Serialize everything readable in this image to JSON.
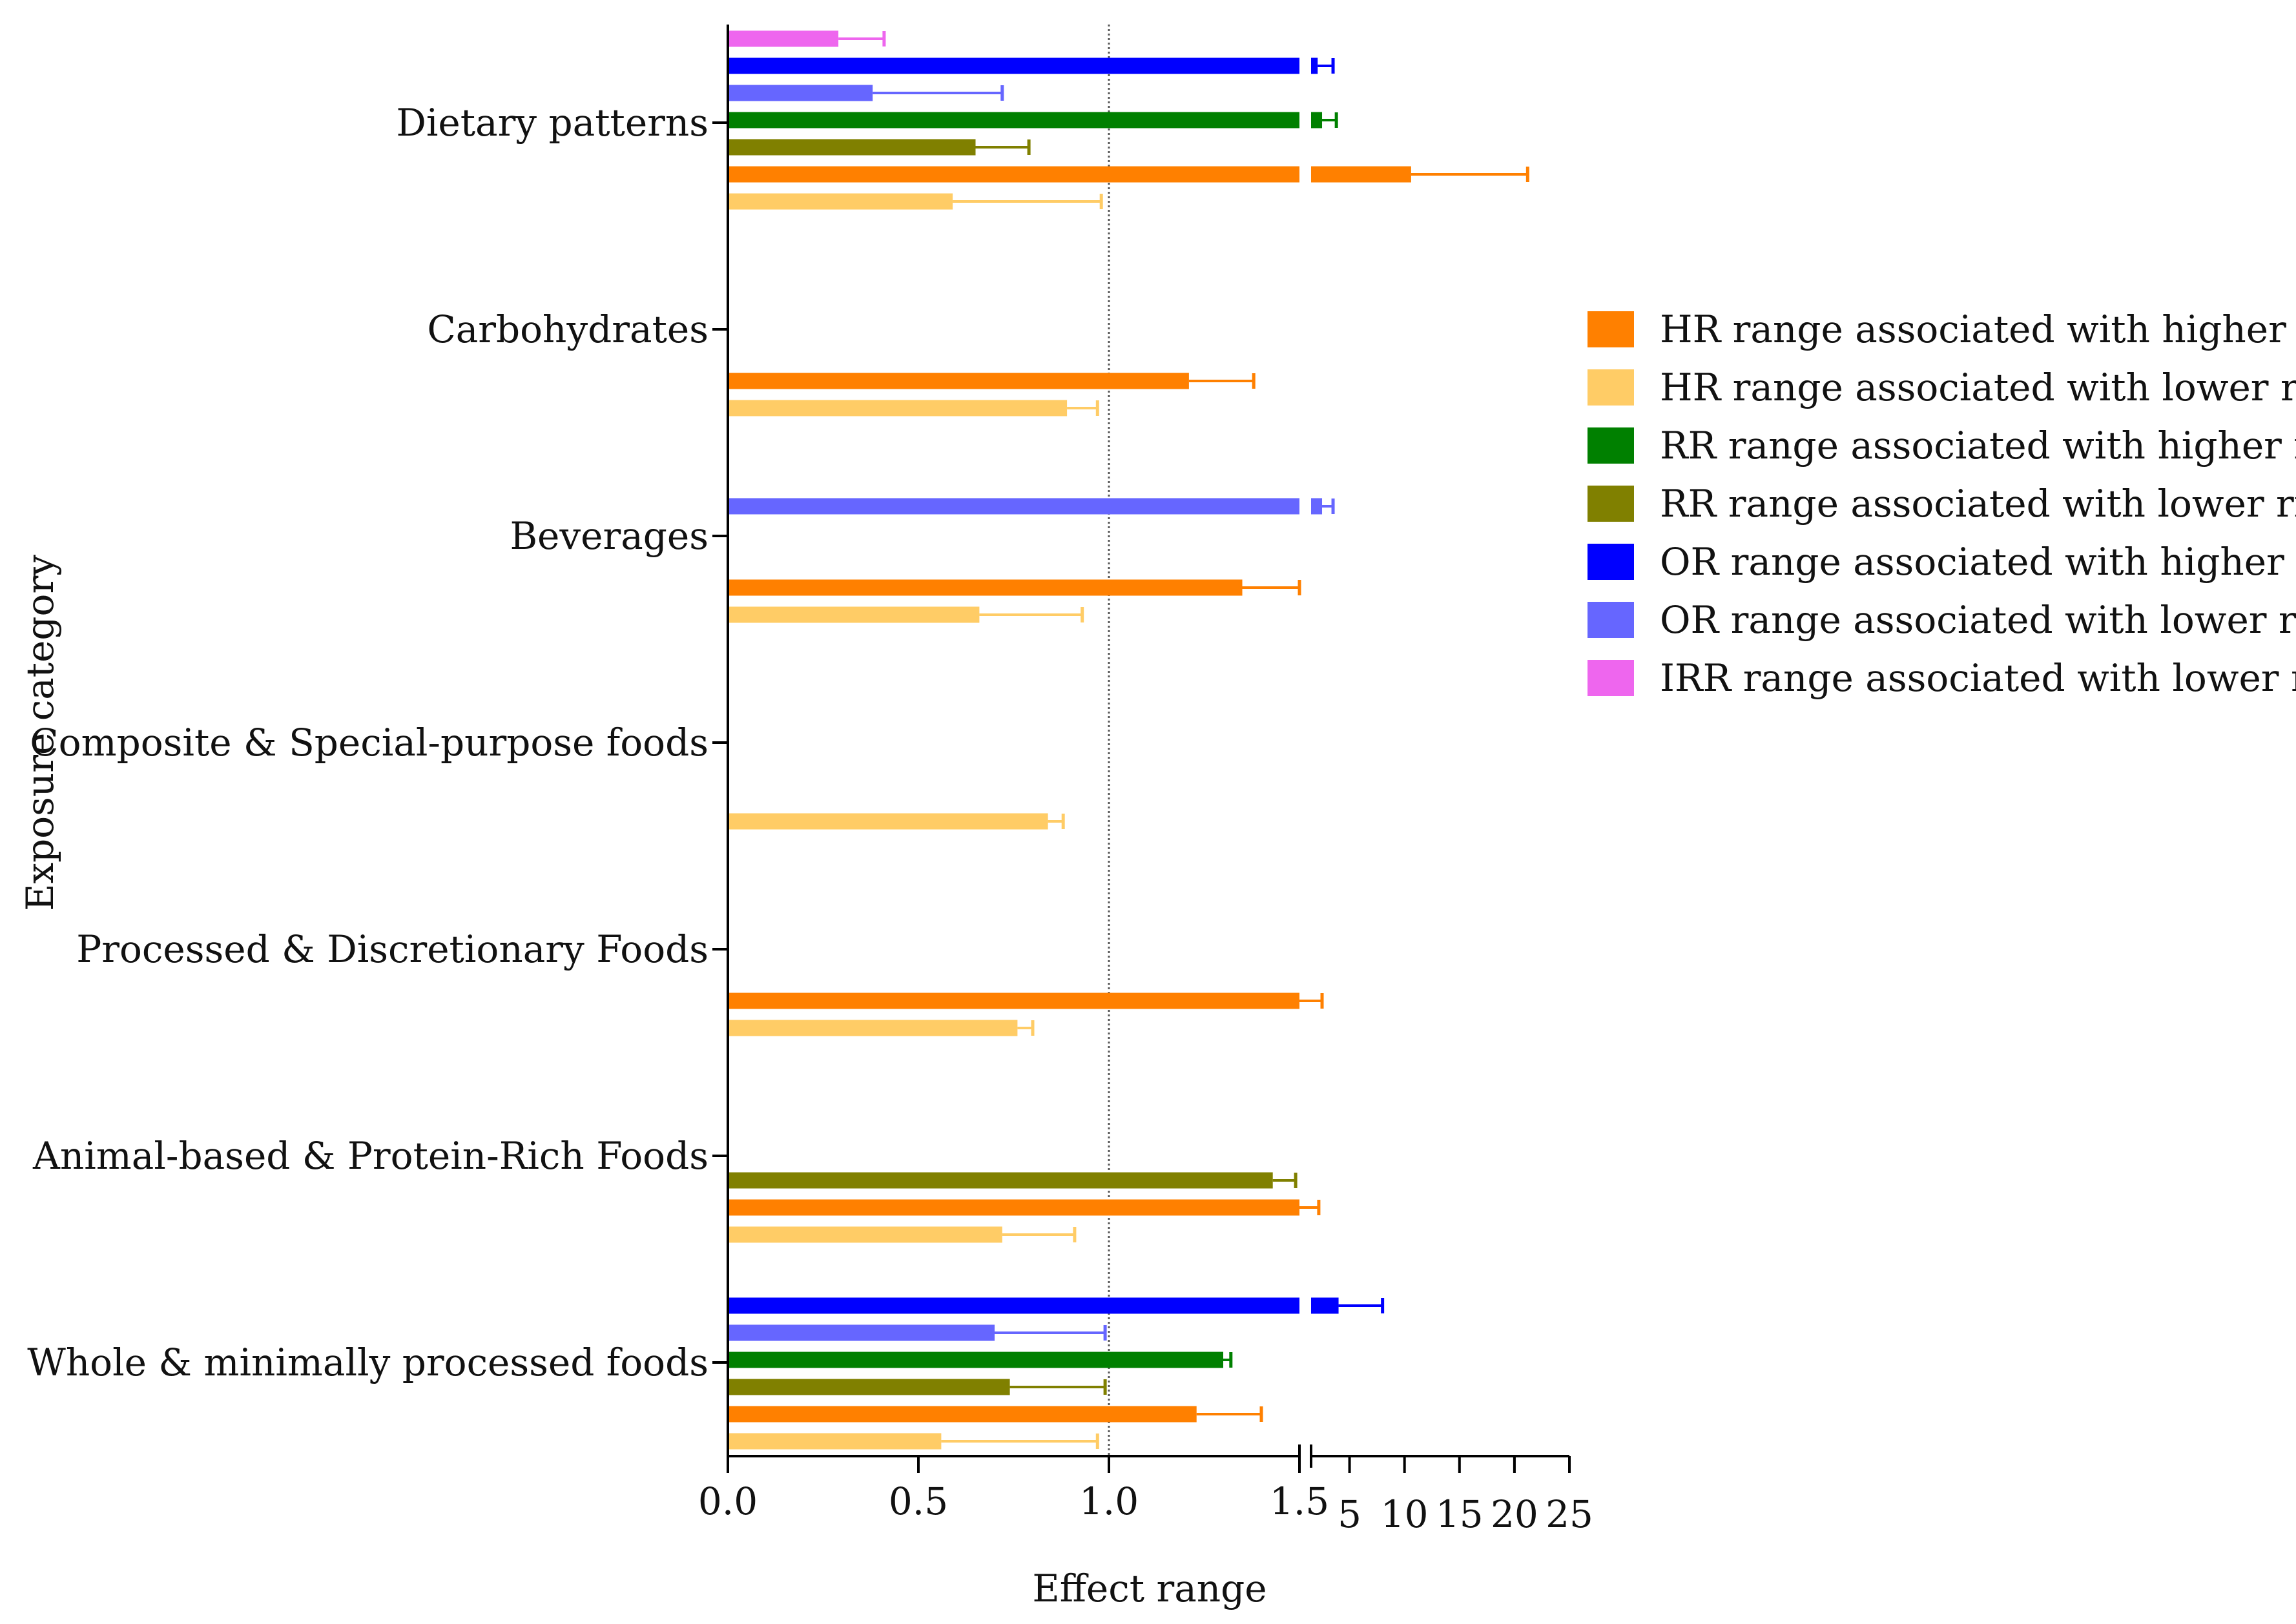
{
  "chart_data": {
    "type": "bar",
    "orientation": "horizontal",
    "title": "",
    "xlabel": "Effect range",
    "ylabel": "Exposure category",
    "x_axis": {
      "segments": [
        {
          "range": [
            0,
            1.5
          ],
          "ticks": [
            "0.0",
            "0.5",
            "1.0",
            "1.5"
          ]
        },
        {
          "range": [
            1.5,
            25
          ],
          "ticks": [
            "5",
            "10",
            "15",
            "20",
            "25"
          ]
        }
      ],
      "reference_line": 1.0
    },
    "categories": [
      "Dietary patterns",
      "Carbohydrates",
      "Beverages",
      "Composite & Special-purpose foods",
      "Processed & Discretionary Foods",
      "Animal-based & Protein-Rich Foods",
      "Whole & minimally processed foods"
    ],
    "series": [
      {
        "key": "hr_high",
        "name": "HR range associated with higher risk",
        "color": "#FF8000"
      },
      {
        "key": "hr_low",
        "name": "HR range associated with lower risk",
        "color": "#FFCC66"
      },
      {
        "key": "rr_high",
        "name": "RR range associated with higher risk",
        "color": "#008000"
      },
      {
        "key": "rr_low",
        "name": "RR range associated with lower risk",
        "color": "#808000"
      },
      {
        "key": "or_high",
        "name": "OR range associated with higher risk",
        "color": "#0000FF"
      },
      {
        "key": "or_low",
        "name": "OR range associated with lower risk",
        "color": "#6666FF"
      },
      {
        "key": "irr_low",
        "name": "IRR range associated with lower risk",
        "color": "#EE66EE"
      }
    ],
    "bars": [
      {
        "category": "Dietary patterns",
        "series": "irr_low",
        "value": 0.29,
        "upper": 0.41
      },
      {
        "category": "Dietary patterns",
        "series": "or_high",
        "value": 2.1,
        "upper": 3.5
      },
      {
        "category": "Dietary patterns",
        "series": "or_low",
        "value": 0.38,
        "upper": 0.72
      },
      {
        "category": "Dietary patterns",
        "series": "rr_high",
        "value": 2.5,
        "upper": 3.8
      },
      {
        "category": "Dietary patterns",
        "series": "rr_low",
        "value": 0.65,
        "upper": 0.79
      },
      {
        "category": "Dietary patterns",
        "series": "hr_high",
        "value": 10.6,
        "upper": 21.2
      },
      {
        "category": "Dietary patterns",
        "series": "hr_low",
        "value": 0.59,
        "upper": 0.98
      },
      {
        "category": "Carbohydrates",
        "series": "hr_high",
        "value": 1.21,
        "upper": 1.38
      },
      {
        "category": "Carbohydrates",
        "series": "hr_low",
        "value": 0.89,
        "upper": 0.97
      },
      {
        "category": "Beverages",
        "series": "or_low",
        "value": 2.5,
        "upper": 3.5
      },
      {
        "category": "Beverages",
        "series": "hr_high",
        "value": 1.35,
        "upper": 1.5
      },
      {
        "category": "Beverages",
        "series": "hr_low",
        "value": 0.66,
        "upper": 0.93
      },
      {
        "category": "Composite & Special-purpose foods",
        "series": "hr_low",
        "value": 0.84,
        "upper": 0.88
      },
      {
        "category": "Processed & Discretionary Foods",
        "series": "hr_high",
        "value": 1.5,
        "upper": 2.5
      },
      {
        "category": "Processed & Discretionary Foods",
        "series": "hr_low",
        "value": 0.76,
        "upper": 0.8
      },
      {
        "category": "Animal-based & Protein-Rich Foods",
        "series": "rr_low",
        "value": 1.43,
        "upper": 1.49
      },
      {
        "category": "Animal-based & Protein-Rich Foods",
        "series": "hr_high",
        "value": 1.5,
        "upper": 2.2
      },
      {
        "category": "Animal-based & Protein-Rich Foods",
        "series": "hr_low",
        "value": 0.72,
        "upper": 0.91
      },
      {
        "category": "Whole & minimally processed foods",
        "series": "or_high",
        "value": 4.0,
        "upper": 8.0
      },
      {
        "category": "Whole & minimally processed foods",
        "series": "or_low",
        "value": 0.7,
        "upper": 0.99
      },
      {
        "category": "Whole & minimally processed foods",
        "series": "rr_high",
        "value": 1.3,
        "upper": 1.32
      },
      {
        "category": "Whole & minimally processed foods",
        "series": "rr_low",
        "value": 0.74,
        "upper": 0.99
      },
      {
        "category": "Whole & minimally processed foods",
        "series": "hr_high",
        "value": 1.23,
        "upper": 1.4
      },
      {
        "category": "Whole & minimally processed foods",
        "series": "hr_low",
        "value": 0.56,
        "upper": 0.97
      }
    ],
    "legend_position": "right"
  }
}
